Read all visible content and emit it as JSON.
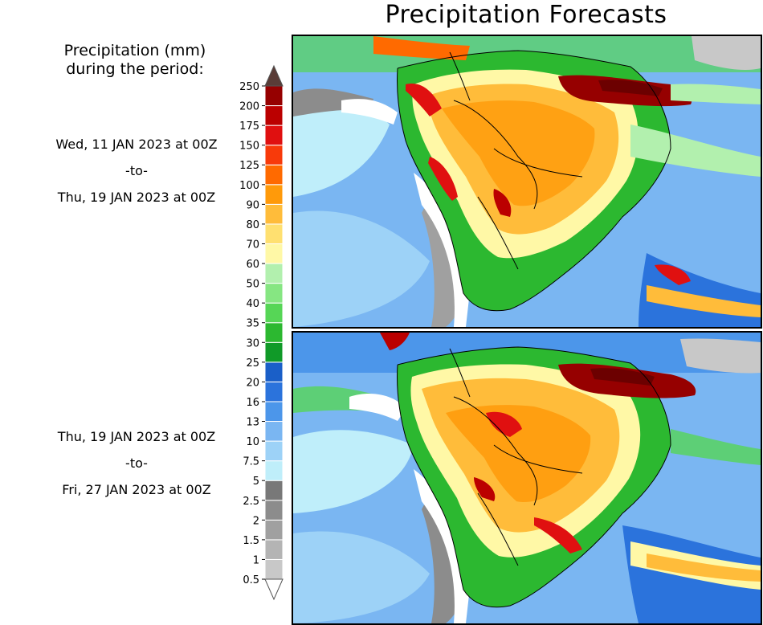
{
  "title": "Precipitation Forecasts",
  "legend": {
    "title_line1": "Precipitation (mm)",
    "title_line2": "during the period:"
  },
  "periods": [
    {
      "start": "Wed, 11 JAN 2023 at 00Z",
      "separator": "-to-",
      "end": "Thu, 19 JAN 2023 at 00Z"
    },
    {
      "start": "Thu, 19 JAN 2023 at 00Z",
      "separator": "-to-",
      "end": "Fri, 27 JAN 2023 at 00Z"
    }
  ],
  "colorbar": {
    "units": "mm",
    "bins": [
      {
        "label": "0.5",
        "color": "#c8c8c8"
      },
      {
        "label": "1",
        "color": "#b4b4b4"
      },
      {
        "label": "1.5",
        "color": "#a0a0a0"
      },
      {
        "label": "2",
        "color": "#8c8c8c"
      },
      {
        "label": "2.5",
        "color": "#787878"
      },
      {
        "label": "5",
        "color": "#bfeefa"
      },
      {
        "label": "7.5",
        "color": "#9dd2f7"
      },
      {
        "label": "10",
        "color": "#7ab6f2"
      },
      {
        "label": "13",
        "color": "#4c96ea"
      },
      {
        "label": "16",
        "color": "#2b73dc"
      },
      {
        "label": "20",
        "color": "#1a5fc8"
      },
      {
        "label": "25",
        "color": "#109a28"
      },
      {
        "label": "30",
        "color": "#2cb830"
      },
      {
        "label": "35",
        "color": "#56d656"
      },
      {
        "label": "40",
        "color": "#86e682"
      },
      {
        "label": "50",
        "color": "#b2f0ae"
      },
      {
        "label": "60",
        "color": "#fff8a6"
      },
      {
        "label": "70",
        "color": "#ffe070"
      },
      {
        "label": "80",
        "color": "#ffbc3a"
      },
      {
        "label": "90",
        "color": "#ff9a0a"
      },
      {
        "label": "100",
        "color": "#ff6a00"
      },
      {
        "label": "125",
        "color": "#f83a0a"
      },
      {
        "label": "150",
        "color": "#e01010"
      },
      {
        "label": "175",
        "color": "#bb0000"
      },
      {
        "label": "200",
        "color": "#960000"
      },
      {
        "label": "250",
        "color": "#6c0000"
      }
    ],
    "over_color": "#5a3c37",
    "under_color": "#ffffff"
  }
}
